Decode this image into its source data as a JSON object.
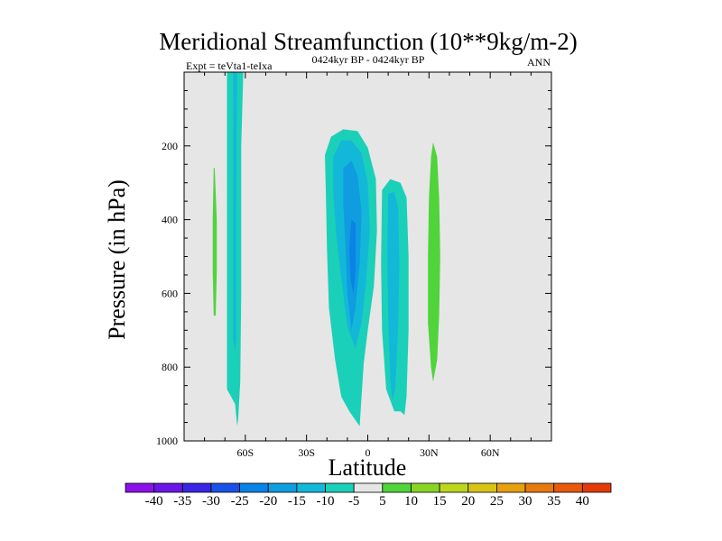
{
  "chart_data": {
    "type": "contour",
    "title": "Meridional Streamfunction (10**9kg/m-2)",
    "left_label": "Expt = teVta1-teIxa",
    "center_label": "0424kyr BP - 0424kyr BP",
    "right_label": "ANN",
    "xlabel": "Latitude",
    "ylabel": "Pressure (in hPa)",
    "xlim": [
      -90,
      90
    ],
    "ylim": [
      1000,
      0
    ],
    "x_ticks": [
      {
        "value": -60,
        "label": "60S"
      },
      {
        "value": -30,
        "label": "30S"
      },
      {
        "value": 0,
        "label": "0"
      },
      {
        "value": 30,
        "label": "30N"
      },
      {
        "value": 60,
        "label": "60N"
      }
    ],
    "y_ticks": [
      {
        "value": 200,
        "label": "200"
      },
      {
        "value": 400,
        "label": "400"
      },
      {
        "value": 600,
        "label": "600"
      },
      {
        "value": 800,
        "label": "800"
      },
      {
        "value": 1000,
        "label": "1000"
      }
    ],
    "background_color": "#e6e6e6",
    "regions": [
      {
        "name": "cell-75s-positive",
        "level": "5 to 10",
        "color": "#4fd43a",
        "outline": [
          [
            -75,
            260
          ],
          [
            -74,
            400
          ],
          [
            -74,
            540
          ],
          [
            -74.5,
            660
          ],
          [
            -75.5,
            660
          ],
          [
            -76,
            540
          ],
          [
            -76,
            400
          ],
          [
            -75.5,
            260
          ]
        ]
      },
      {
        "name": "cell-63s-negative",
        "level": "-10 to -5",
        "color": "#1bd0b8",
        "outline": [
          [
            -69,
            0
          ],
          [
            -61,
            0
          ],
          [
            -62,
            200
          ],
          [
            -62,
            600
          ],
          [
            -62.5,
            840
          ],
          [
            -63.5,
            940
          ],
          [
            -64,
            960
          ],
          [
            -65,
            900
          ],
          [
            -67,
            880
          ],
          [
            -69,
            860
          ],
          [
            -69,
            600
          ],
          [
            -69,
            200
          ]
        ]
      },
      {
        "name": "cell-63s-core",
        "level": "-15 to -10",
        "color": "#13b8d8",
        "outline": [
          [
            -66,
            0
          ],
          [
            -64,
            0
          ],
          [
            -64.5,
            400
          ],
          [
            -64.5,
            720
          ],
          [
            -65,
            760
          ],
          [
            -66,
            720
          ],
          [
            -66,
            400
          ]
        ]
      },
      {
        "name": "cell-eq-south-negative",
        "level": "-10 to -5",
        "color": "#1bd0b8",
        "outline": [
          [
            -21,
            225
          ],
          [
            -18,
            175
          ],
          [
            -12,
            155
          ],
          [
            -5,
            160
          ],
          [
            0,
            205
          ],
          [
            4,
            290
          ],
          [
            4.5,
            430
          ],
          [
            3,
            580
          ],
          [
            0,
            700
          ],
          [
            -2,
            790
          ],
          [
            -4,
            960
          ],
          [
            -9,
            920
          ],
          [
            -13,
            880
          ],
          [
            -16,
            780
          ],
          [
            -19,
            640
          ],
          [
            -20,
            480
          ],
          [
            -20.5,
            330
          ]
        ]
      },
      {
        "name": "cell-eq-south-mid",
        "level": "-15 to -10",
        "color": "#13b8d8",
        "outline": [
          [
            -17,
            230
          ],
          [
            -13,
            185
          ],
          [
            -8,
            185
          ],
          [
            -3,
            220
          ],
          [
            0,
            300
          ],
          [
            1,
            430
          ],
          [
            -1,
            580
          ],
          [
            -3,
            680
          ],
          [
            -6,
            750
          ],
          [
            -10,
            690
          ],
          [
            -13,
            560
          ],
          [
            -15.5,
            440
          ],
          [
            -17,
            320
          ]
        ]
      },
      {
        "name": "cell-eq-south-inner",
        "level": "-20 to -15",
        "color": "#0f9ce0",
        "outline": [
          [
            -12,
            260
          ],
          [
            -8,
            240
          ],
          [
            -5,
            280
          ],
          [
            -3,
            380
          ],
          [
            -4,
            520
          ],
          [
            -6,
            640
          ],
          [
            -8,
            700
          ],
          [
            -10,
            600
          ],
          [
            -11,
            460
          ],
          [
            -12,
            360
          ]
        ]
      },
      {
        "name": "cell-eq-south-core",
        "level": "-25 to -20",
        "color": "#0b82e6",
        "outline": [
          [
            -8,
            400
          ],
          [
            -6,
            410
          ],
          [
            -6,
            540
          ],
          [
            -7,
            600
          ],
          [
            -8.5,
            560
          ],
          [
            -9,
            470
          ]
        ]
      },
      {
        "name": "cell-12n-negative",
        "level": "-10 to -5",
        "color": "#1bd0b8",
        "outline": [
          [
            7,
            320
          ],
          [
            11,
            290
          ],
          [
            16,
            300
          ],
          [
            19,
            340
          ],
          [
            20,
            500
          ],
          [
            20,
            700
          ],
          [
            19,
            880
          ],
          [
            18,
            930
          ],
          [
            16,
            920
          ],
          [
            13,
            920
          ],
          [
            9,
            860
          ],
          [
            7,
            700
          ],
          [
            6.5,
            520
          ]
        ]
      },
      {
        "name": "cell-12n-core",
        "level": "-15 to -10",
        "color": "#13b8d8",
        "outline": [
          [
            10,
            330
          ],
          [
            13,
            325
          ],
          [
            15,
            370
          ],
          [
            15.5,
            520
          ],
          [
            15,
            680
          ],
          [
            13.5,
            860
          ],
          [
            12,
            890
          ],
          [
            11,
            830
          ],
          [
            10,
            660
          ],
          [
            9.5,
            500
          ]
        ]
      },
      {
        "name": "cell-32n-positive",
        "level": "5 to 10",
        "color": "#4fd43a",
        "outline": [
          [
            32,
            190
          ],
          [
            34,
            230
          ],
          [
            35,
            340
          ],
          [
            35.5,
            500
          ],
          [
            35,
            660
          ],
          [
            34,
            780
          ],
          [
            32,
            840
          ],
          [
            31,
            800
          ],
          [
            29.5,
            680
          ],
          [
            29.5,
            500
          ],
          [
            30,
            340
          ],
          [
            31,
            230
          ]
        ]
      }
    ],
    "colorbar": {
      "levels": [
        -40,
        -35,
        -30,
        -25,
        -20,
        -15,
        -10,
        -5,
        5,
        10,
        15,
        20,
        25,
        30,
        35,
        40
      ],
      "colors": [
        "#8a12e8",
        "#6a16e6",
        "#3a26e2",
        "#1a52e6",
        "#0b82e6",
        "#0f9ce0",
        "#13b8d8",
        "#1bd0b8",
        "#e6e6e6",
        "#4fd43a",
        "#8ad426",
        "#bcd61e",
        "#d8c416",
        "#e6a010",
        "#e67a0e",
        "#e65a0c",
        "#e43b0a"
      ]
    }
  }
}
